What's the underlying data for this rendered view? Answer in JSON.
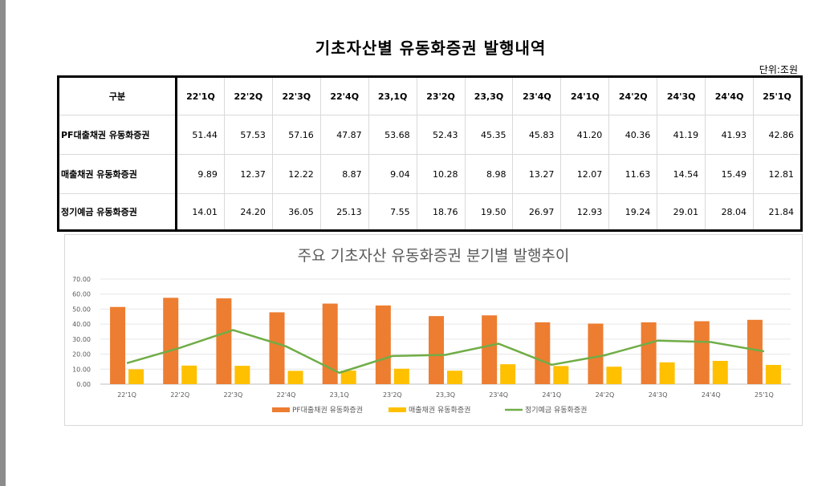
{
  "page": {
    "title": "기초자산별 유동화증권 발행내역",
    "unit": "단위:조원"
  },
  "table": {
    "corner": "구분",
    "columns": [
      "22'1Q",
      "22'2Q",
      "22'3Q",
      "22'4Q",
      "23,1Q",
      "23'2Q",
      "23,3Q",
      "23'4Q",
      "24'1Q",
      "24'2Q",
      "24'3Q",
      "24'4Q",
      "25'1Q"
    ],
    "rows": [
      {
        "label": "PF대출채권 유동화증권",
        "values": [
          "51.44",
          "57.53",
          "57.16",
          "47.87",
          "53.68",
          "52.43",
          "45.35",
          "45.83",
          "41.20",
          "40.36",
          "41.19",
          "41.93",
          "42.86"
        ]
      },
      {
        "label": "매출채권 유동화증권",
        "values": [
          "9.89",
          "12.37",
          "12.22",
          "8.87",
          "9.04",
          "10.28",
          "8.98",
          "13.27",
          "12.07",
          "11.63",
          "14.54",
          "15.49",
          "12.81"
        ]
      },
      {
        "label": "정기예금 유동화증권",
        "values": [
          "14.01",
          "24.20",
          "36.05",
          "25.13",
          "7.55",
          "18.76",
          "19.50",
          "26.97",
          "12.93",
          "19.24",
          "29.01",
          "28.04",
          "21.84"
        ]
      }
    ]
  },
  "chart_data": {
    "type": "bar",
    "title": "주요 기초자산 유동화증권 분기별 발행추이",
    "categories": [
      "22'1Q",
      "22'2Q",
      "22'3Q",
      "22'4Q",
      "23,1Q",
      "23'2Q",
      "23,3Q",
      "23'4Q",
      "24'1Q",
      "24'2Q",
      "24'3Q",
      "24'4Q",
      "25'1Q"
    ],
    "yticks": [
      "0.00",
      "10.00",
      "20.00",
      "30.00",
      "40.00",
      "50.00",
      "60.00",
      "70.00"
    ],
    "ylim": [
      0,
      70
    ],
    "grid": true,
    "legend_position": "bottom",
    "series": [
      {
        "name": "PF대출채권 유동화증권",
        "kind": "bar",
        "color": "#ed7d31",
        "values": [
          51.44,
          57.53,
          57.16,
          47.87,
          53.68,
          52.43,
          45.35,
          45.83,
          41.2,
          40.36,
          41.19,
          41.93,
          42.86
        ]
      },
      {
        "name": "매출채권 유동화증권",
        "kind": "bar",
        "color": "#ffc000",
        "values": [
          9.89,
          12.37,
          12.22,
          8.87,
          9.04,
          10.28,
          8.98,
          13.27,
          12.07,
          11.63,
          14.54,
          15.49,
          12.81
        ]
      },
      {
        "name": "정기예금 유동화증권",
        "kind": "line",
        "color": "#70ad47",
        "values": [
          14.01,
          24.2,
          36.05,
          25.13,
          7.55,
          18.76,
          19.5,
          26.97,
          12.93,
          19.24,
          29.01,
          28.04,
          21.84
        ]
      }
    ]
  }
}
